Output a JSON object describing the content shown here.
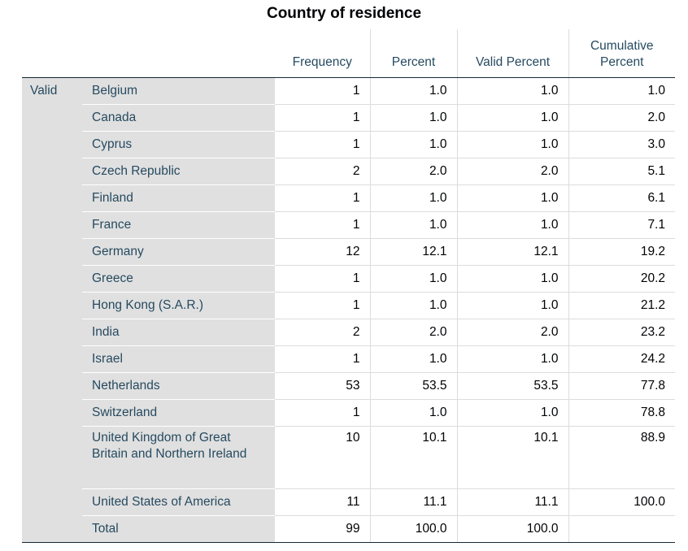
{
  "table": {
    "title": "Country of residence",
    "headers": {
      "frequency": "Frequency",
      "percent": "Percent",
      "valid_percent": "Valid Percent",
      "cumulative_percent": "Cumulative Percent"
    },
    "group_label": "Valid",
    "rows": [
      {
        "label": "Belgium",
        "frequency": "1",
        "percent": "1.0",
        "valid_percent": "1.0",
        "cumulative_percent": "1.0"
      },
      {
        "label": "Canada",
        "frequency": "1",
        "percent": "1.0",
        "valid_percent": "1.0",
        "cumulative_percent": "2.0"
      },
      {
        "label": "Cyprus",
        "frequency": "1",
        "percent": "1.0",
        "valid_percent": "1.0",
        "cumulative_percent": "3.0"
      },
      {
        "label": "Czech Republic",
        "frequency": "2",
        "percent": "2.0",
        "valid_percent": "2.0",
        "cumulative_percent": "5.1"
      },
      {
        "label": "Finland",
        "frequency": "1",
        "percent": "1.0",
        "valid_percent": "1.0",
        "cumulative_percent": "6.1"
      },
      {
        "label": "France",
        "frequency": "1",
        "percent": "1.0",
        "valid_percent": "1.0",
        "cumulative_percent": "7.1"
      },
      {
        "label": "Germany",
        "frequency": "12",
        "percent": "12.1",
        "valid_percent": "12.1",
        "cumulative_percent": "19.2"
      },
      {
        "label": "Greece",
        "frequency": "1",
        "percent": "1.0",
        "valid_percent": "1.0",
        "cumulative_percent": "20.2"
      },
      {
        "label": "Hong Kong (S.A.R.)",
        "frequency": "1",
        "percent": "1.0",
        "valid_percent": "1.0",
        "cumulative_percent": "21.2"
      },
      {
        "label": "India",
        "frequency": "2",
        "percent": "2.0",
        "valid_percent": "2.0",
        "cumulative_percent": "23.2"
      },
      {
        "label": "Israel",
        "frequency": "1",
        "percent": "1.0",
        "valid_percent": "1.0",
        "cumulative_percent": "24.2"
      },
      {
        "label": "Netherlands",
        "frequency": "53",
        "percent": "53.5",
        "valid_percent": "53.5",
        "cumulative_percent": "77.8"
      },
      {
        "label": "Switzerland",
        "frequency": "1",
        "percent": "1.0",
        "valid_percent": "1.0",
        "cumulative_percent": "78.8"
      },
      {
        "label": "United Kingdom of Great Britain and Northern Ireland",
        "frequency": "10",
        "percent": "10.1",
        "valid_percent": "10.1",
        "cumulative_percent": "88.9"
      },
      {
        "label": "United States of America",
        "frequency": "11",
        "percent": "11.1",
        "valid_percent": "11.1",
        "cumulative_percent": "100.0"
      },
      {
        "label": "Total",
        "frequency": "99",
        "percent": "100.0",
        "valid_percent": "100.0",
        "cumulative_percent": ""
      }
    ]
  }
}
